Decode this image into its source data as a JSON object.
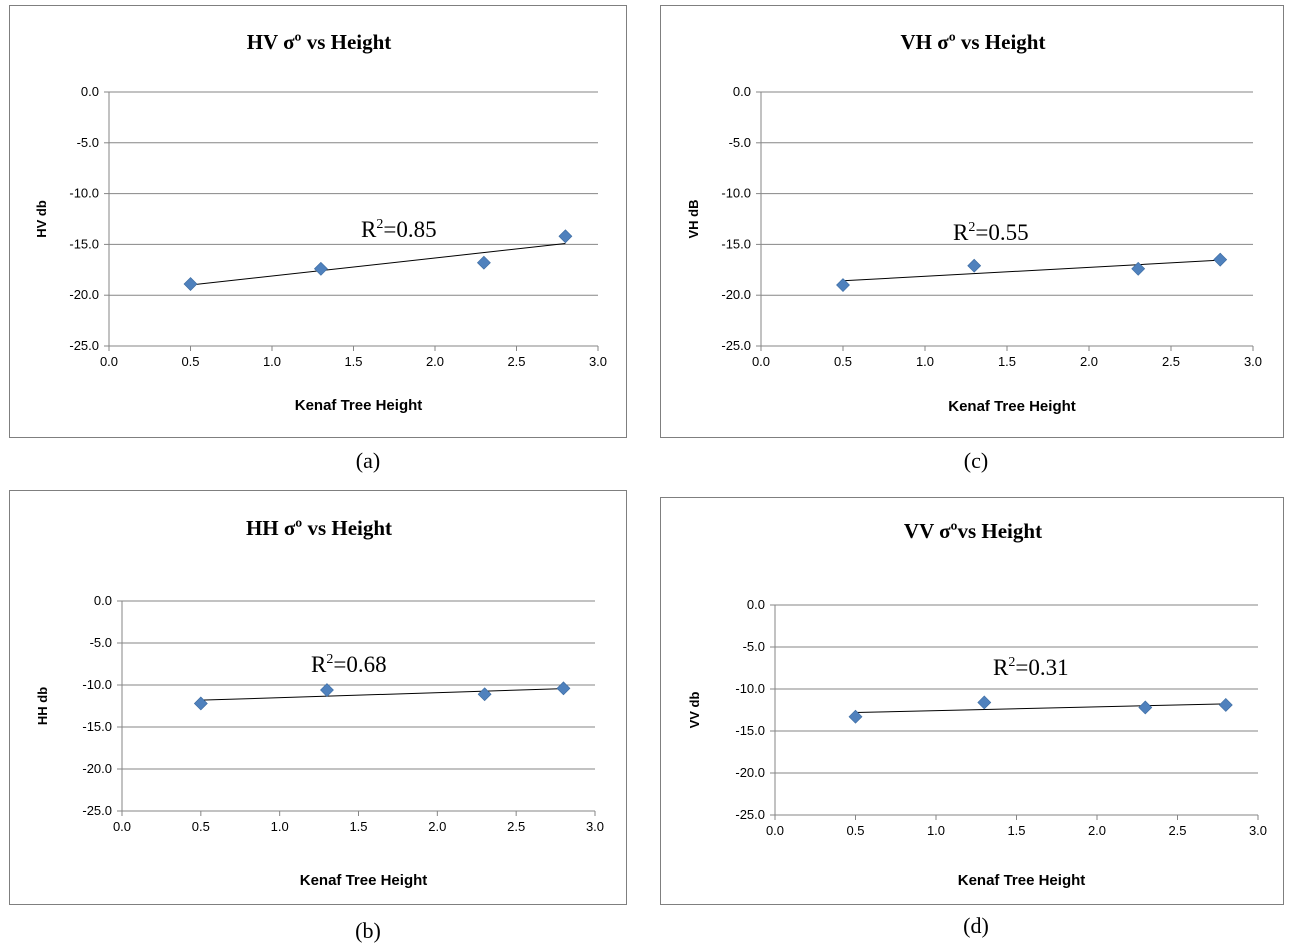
{
  "captions": {
    "a": "(a)",
    "b": "(b)",
    "c": "(c)",
    "d": "(d)"
  },
  "chart_data": [
    {
      "type": "scatter",
      "title": "HV σº vs Height",
      "xlabel": "Kenaf Tree Height",
      "ylabel": "HV db",
      "xlim": [
        0.0,
        3.0
      ],
      "ylim": [
        -25.0,
        0.0
      ],
      "xticks": [
        "0.0",
        "0.5",
        "1.0",
        "1.5",
        "2.0",
        "2.5",
        "3.0"
      ],
      "yticks": [
        "0.0",
        "-5.0",
        "-10.0",
        "-15.0",
        "-20.0",
        "-25.0"
      ],
      "x": [
        0.5,
        1.3,
        2.3,
        2.8
      ],
      "y": [
        -18.9,
        -17.4,
        -16.8,
        -14.2
      ],
      "trendline": {
        "type": "linear",
        "r2_text": "=0.85",
        "r2_value": 0.85
      },
      "marker_color": "#4f81bd",
      "grid": true
    },
    {
      "type": "scatter",
      "title": "HH  σº vs Height",
      "xlabel": "Kenaf Tree Height",
      "ylabel": "HH db",
      "xlim": [
        0.0,
        3.0
      ],
      "ylim": [
        -25.0,
        0.0
      ],
      "xticks": [
        "0.0",
        "0.5",
        "1.0",
        "1.5",
        "2.0",
        "2.5",
        "3.0"
      ],
      "yticks": [
        "0.0",
        "-5.0",
        "-10.0",
        "-15.0",
        "-20.0",
        "-25.0"
      ],
      "x": [
        0.5,
        1.3,
        2.3,
        2.8
      ],
      "y": [
        -12.2,
        -10.6,
        -11.1,
        -10.4
      ],
      "trendline": {
        "type": "linear",
        "r2_text": "=0.68",
        "r2_value": 0.68
      },
      "marker_color": "#4f81bd",
      "grid": true
    },
    {
      "type": "scatter",
      "title": "VH σº vs Height",
      "xlabel": "Kenaf Tree Height",
      "ylabel": "VH dB",
      "xlim": [
        0.0,
        3.0
      ],
      "ylim": [
        -25.0,
        0.0
      ],
      "xticks": [
        "0.0",
        "0.5",
        "1.0",
        "1.5",
        "2.0",
        "2.5",
        "3.0"
      ],
      "yticks": [
        "0.0",
        "-5.0",
        "-10.0",
        "-15.0",
        "-20.0",
        "-25.0"
      ],
      "x": [
        0.5,
        1.3,
        2.3,
        2.8
      ],
      "y": [
        -19.0,
        -17.1,
        -17.4,
        -16.5
      ],
      "trendline": {
        "type": "linear",
        "r2_text": "=0.55",
        "r2_value": 0.55
      },
      "marker_color": "#4f81bd",
      "grid": true
    },
    {
      "type": "scatter",
      "title": "VV σºvs Height",
      "xlabel": "Kenaf Tree Height",
      "ylabel": "VV db",
      "xlim": [
        0.0,
        3.0
      ],
      "ylim": [
        -25.0,
        0.0
      ],
      "xticks": [
        "0.0",
        "0.5",
        "1.0",
        "1.5",
        "2.0",
        "2.5",
        "3.0"
      ],
      "yticks": [
        "0.0",
        "-5.0",
        "-10.0",
        "-15.0",
        "-20.0",
        "-25.0"
      ],
      "x": [
        0.5,
        1.3,
        2.3,
        2.8
      ],
      "y": [
        -13.3,
        -11.6,
        -12.2,
        -11.9
      ],
      "trendline": {
        "type": "linear",
        "r2_text": "=0.31",
        "r2_value": 0.31
      },
      "marker_color": "#4f81bd",
      "grid": true
    }
  ]
}
